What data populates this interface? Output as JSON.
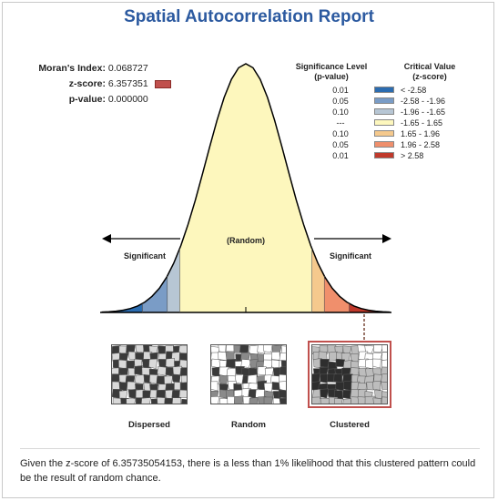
{
  "title": "Spatial Autocorrelation Report",
  "stats": {
    "morans_label": "Moran's Index:",
    "morans_value": "0.068727",
    "z_label": "z-score:",
    "z_value": "6.357351",
    "p_label": "p-value:",
    "p_value": "0.000000"
  },
  "legend": {
    "header_sig": "Significance Level",
    "header_sig_sub": "(p-value)",
    "header_crit": "Critical Value",
    "header_crit_sub": "(z-score)",
    "rows": [
      {
        "p": "0.01",
        "cv": "< -2.58",
        "color": "#2b6cb0"
      },
      {
        "p": "0.05",
        "cv": "-2.58 - -1.96",
        "color": "#7a9cc6"
      },
      {
        "p": "0.10",
        "cv": "-1.96 - -1.65",
        "color": "#b7c6d4"
      },
      {
        "p": "---",
        "cv": "-1.65 - 1.65",
        "color": "#fdf7bd"
      },
      {
        "p": "0.10",
        "cv": "1.65 - 1.96",
        "color": "#f5c98d"
      },
      {
        "p": "0.05",
        "cv": "1.96 - 2.58",
        "color": "#f08f6c"
      },
      {
        "p": "0.01",
        "cv": "> 2.58",
        "color": "#c0392b"
      }
    ]
  },
  "curve": {
    "left_label": "Significant",
    "center_label": "(Random)",
    "right_label": "Significant"
  },
  "patterns": {
    "dispersed": "Dispersed",
    "random": "Random",
    "clustered": "Clustered"
  },
  "conclusion": "Given the z-score of 6.35735054153, there is a less than 1% likelihood that this clustered pattern could be the result of random chance.",
  "colors": {
    "title": "#2c5aa0",
    "highlight_border": "#c0504d"
  }
}
